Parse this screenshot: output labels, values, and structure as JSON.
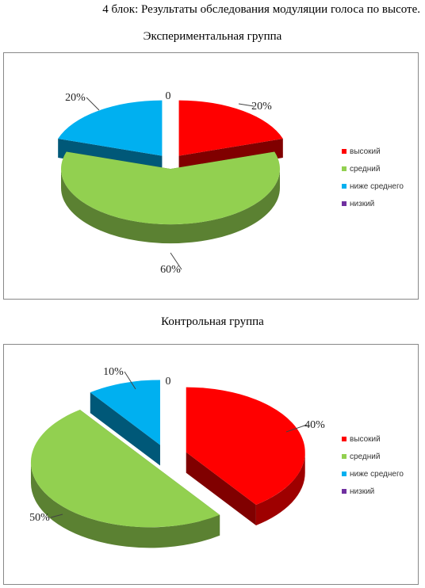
{
  "document": {
    "title": "4 блок: Результаты обследования модуляции голоса по высоте."
  },
  "colors": {
    "высокий": "#ff0000",
    "средний": "#92d050",
    "ниже среднего": "#00b0f0",
    "низкий": "#7030a0"
  },
  "chart_data": [
    {
      "type": "pie",
      "title": "Экспериментальная группа",
      "categories": [
        "высокий",
        "средний",
        "ниже среднего",
        "низкий"
      ],
      "values": [
        20,
        60,
        20,
        0
      ],
      "data_labels": [
        "20%",
        "60%",
        "20%",
        "0"
      ],
      "legend_position": "right",
      "style": "3d-exploded"
    },
    {
      "type": "pie",
      "title": "Контрольная группа",
      "categories": [
        "высокий",
        "средний",
        "ниже среднего",
        "низкий"
      ],
      "values": [
        40,
        50,
        10,
        0
      ],
      "data_labels": [
        "40%",
        "50%",
        "10%",
        "0"
      ],
      "legend_position": "right",
      "style": "3d-exploded"
    }
  ]
}
